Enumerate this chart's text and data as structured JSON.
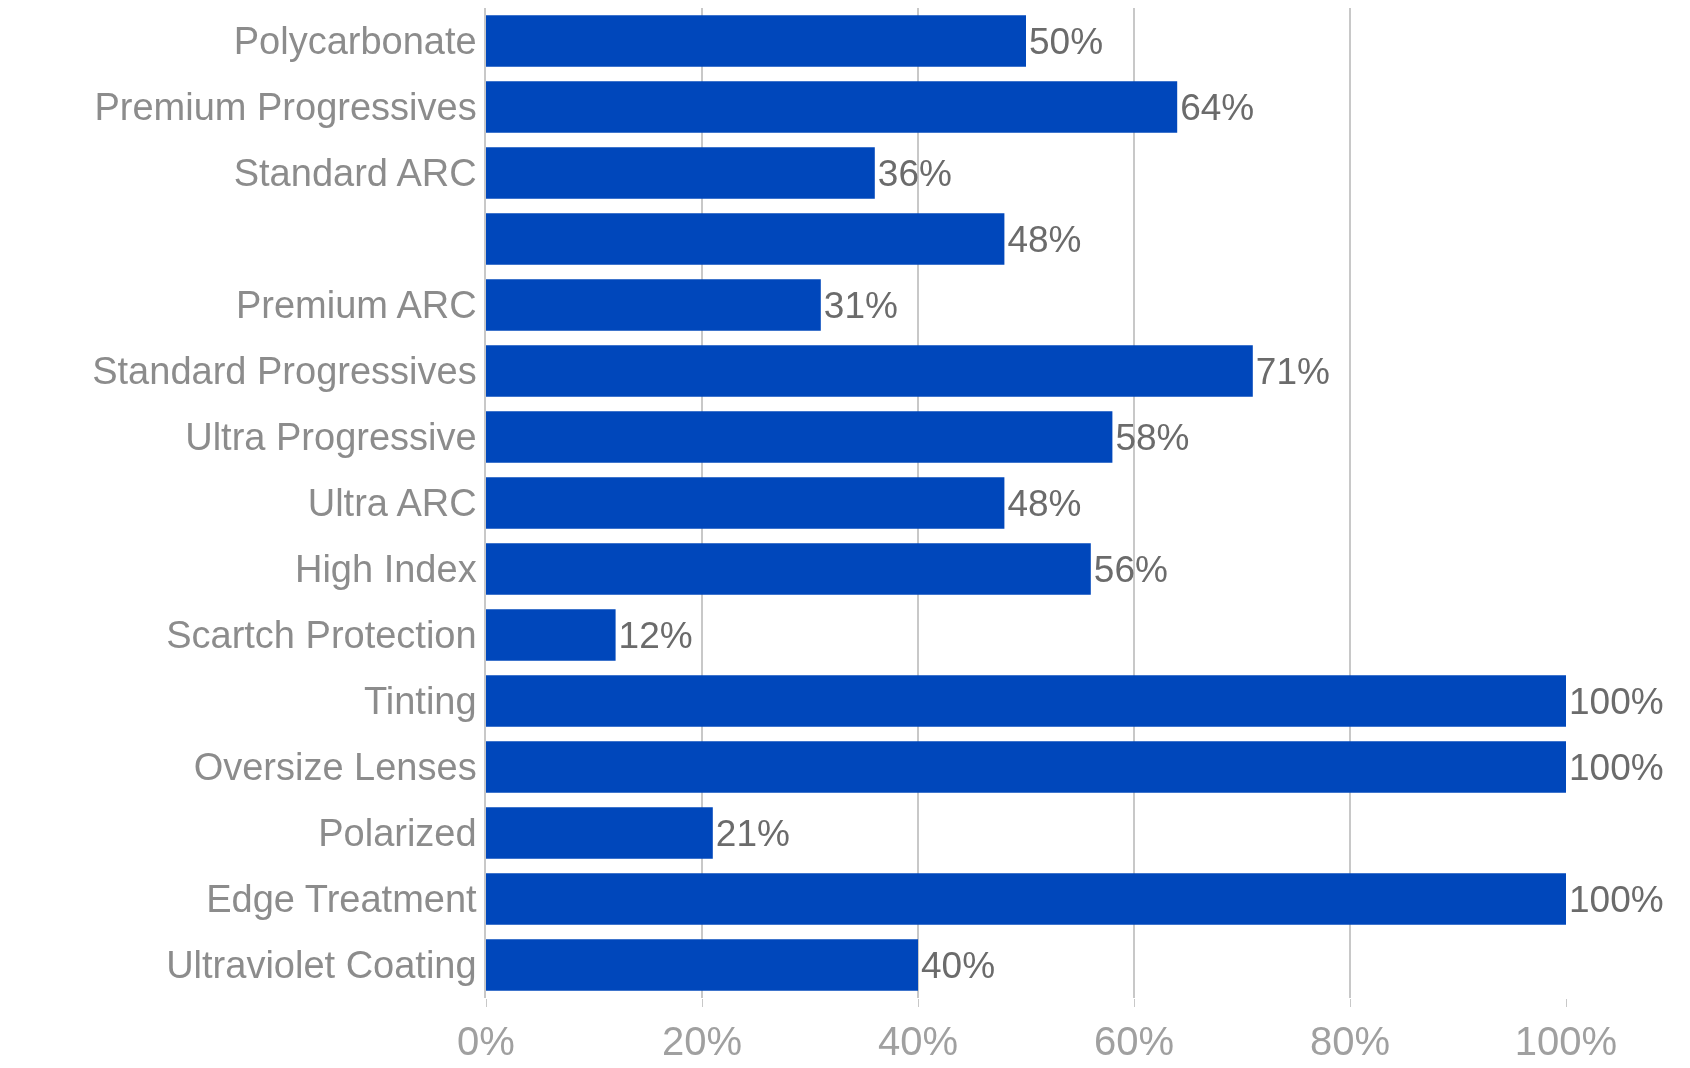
{
  "chart_data": {
    "type": "bar",
    "orientation": "horizontal",
    "categories": [
      "Polycarbonate",
      "Premium Progressives",
      "Standard ARC",
      null,
      "Premium ARC",
      "Standard Progressives",
      "Ultra Progressive",
      "Ultra ARC",
      "High Index",
      "Scartch Protection",
      "Tinting",
      "Oversize Lenses",
      "Polarized",
      "Edge Treatment",
      "Ultraviolet Coating"
    ],
    "values": [
      50,
      64,
      36,
      48,
      31,
      71,
      58,
      48,
      56,
      12,
      100,
      100,
      21,
      100,
      40
    ],
    "value_labels": [
      "50%",
      "64%",
      "36%",
      "48%",
      "31%",
      "71%",
      "58%",
      "48%",
      "56%",
      "12%",
      "100%",
      "100%",
      "21%",
      "100%",
      "40%"
    ],
    "color": "#0047bb",
    "xlim": [
      0,
      100
    ],
    "xticks": [
      {
        "value": 0,
        "label": "0%"
      },
      {
        "value": 20,
        "label": "20%"
      },
      {
        "value": 40,
        "label": "40%"
      },
      {
        "value": 60,
        "label": "60%"
      },
      {
        "value": 80,
        "label": "80%"
      },
      {
        "value": 100,
        "label": "100%"
      }
    ],
    "grid": "x",
    "legend": false
  }
}
